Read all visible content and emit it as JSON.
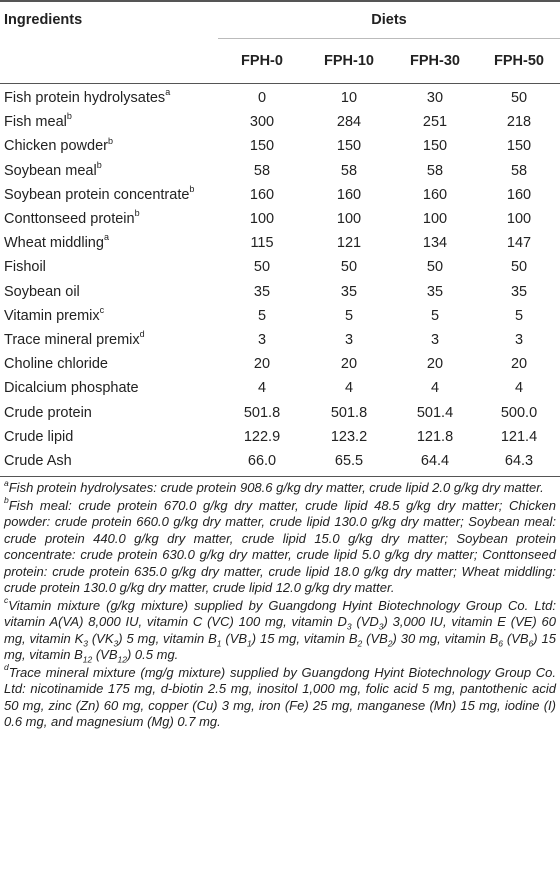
{
  "table": {
    "header": {
      "ingredients": "Ingredients",
      "diets": "Diets",
      "columns": [
        "FPH-0",
        "FPH-10",
        "FPH-30",
        "FPH-50"
      ]
    },
    "rows": [
      {
        "name": "Fish protein hydrolysates",
        "sup": "a",
        "values": [
          "0",
          "10",
          "30",
          "50"
        ]
      },
      {
        "name": "Fish meal",
        "sup": "b",
        "values": [
          "300",
          "284",
          "251",
          "218"
        ]
      },
      {
        "name": "Chicken powder",
        "sup": "b",
        "values": [
          "150",
          "150",
          "150",
          "150"
        ]
      },
      {
        "name": "Soybean meal",
        "sup": "b",
        "values": [
          "58",
          "58",
          "58",
          "58"
        ]
      },
      {
        "name": "Soybean protein concentrate",
        "sup": "b",
        "values": [
          "160",
          "160",
          "160",
          "160"
        ]
      },
      {
        "name": "Conttonseed protein",
        "sup": "b",
        "values": [
          "100",
          "100",
          "100",
          "100"
        ]
      },
      {
        "name": "Wheat middling",
        "sup": "a",
        "values": [
          "115",
          "121",
          "134",
          "147"
        ]
      },
      {
        "name": "Fishoil",
        "sup": "",
        "values": [
          "50",
          "50",
          "50",
          "50"
        ]
      },
      {
        "name": "Soybean oil",
        "sup": "",
        "values": [
          "35",
          "35",
          "35",
          "35"
        ]
      },
      {
        "name": "Vitamin premix",
        "sup": "c",
        "values": [
          "5",
          "5",
          "5",
          "5"
        ]
      },
      {
        "name": "Trace mineral premix",
        "sup": "d",
        "values": [
          "3",
          "3",
          "3",
          "3"
        ]
      },
      {
        "name": "Choline chloride",
        "sup": "",
        "values": [
          "20",
          "20",
          "20",
          "20"
        ]
      },
      {
        "name": "Dicalcium phosphate",
        "sup": "",
        "values": [
          "4",
          "4",
          "4",
          "4"
        ]
      },
      {
        "name": "Crude protein",
        "sup": "",
        "values": [
          "501.8",
          "501.8",
          "501.4",
          "500.0"
        ]
      },
      {
        "name": "Crude lipid",
        "sup": "",
        "values": [
          "122.9",
          "123.2",
          "121.8",
          "121.4"
        ]
      },
      {
        "name": "Crude Ash",
        "sup": "",
        "values": [
          "66.0",
          "65.5",
          "64.4",
          "64.3"
        ]
      }
    ]
  },
  "footnotes": {
    "a": {
      "mark": "a",
      "text": "Fish protein hydrolysates: crude protein 908.6 g/kg dry matter, crude lipid 2.0 g/kg dry matter."
    },
    "b": {
      "mark": "b",
      "text": "Fish meal: crude protein 670.0 g/kg dry matter, crude lipid 48.5 g/kg dry matter; Chicken powder: crude protein 660.0 g/kg dry matter, crude lipid 130.0 g/kg dry matter; Soybean meal: crude protein 440.0 g/kg dry matter, crude lipid 15.0 g/kg dry matter; Soybean protein concentrate: crude protein 630.0 g/kg dry matter, crude lipid 5.0 g/kg dry matter; Conttonseed protein: crude protein 635.0 g/kg dry matter, crude lipid 18.0 g/kg dry matter; Wheat middling: crude protein 130.0 g/kg dry matter, crude lipid 12.0 g/kg dry matter."
    },
    "c": {
      "mark": "c",
      "parts": [
        "Vitamin mixture (g/kg mixture) supplied by Guangdong Hyint Biotechnology Group Co. Ltd: vitamin A(VA) 8,000 IU, vitamin C (VC) 100 mg, vitamin D",
        "3",
        " (VD",
        "3",
        ") 3,000 IU, vitamin E (VE) 60 mg, vitamin K",
        "3",
        " (VK",
        "3",
        ") 5 mg, vitamin B",
        "1",
        " (VB",
        "1",
        ") 15 mg, vitamin B",
        "2",
        " (VB",
        "2",
        ") 30 mg, vitamin B",
        "6",
        " (VB",
        "6",
        ") 15 mg, vitamin B",
        "12",
        " (VB",
        "12",
        ") 0.5 mg."
      ]
    },
    "d": {
      "mark": "d",
      "text": "Trace mineral mixture (mg/g mixture) supplied by Guangdong Hyint Biotechnology Group Co. Ltd: nicotinamide 175 mg, d-biotin 2.5 mg, inositol 1,000 mg, folic acid 5 mg, pantothenic acid 50 mg, zinc (Zn) 60 mg, copper (Cu) 3 mg, iron (Fe) 25 mg, manganese (Mn) 15 mg, iodine (I) 0.6 mg, and magnesium (Mg) 0.7 mg."
    }
  }
}
